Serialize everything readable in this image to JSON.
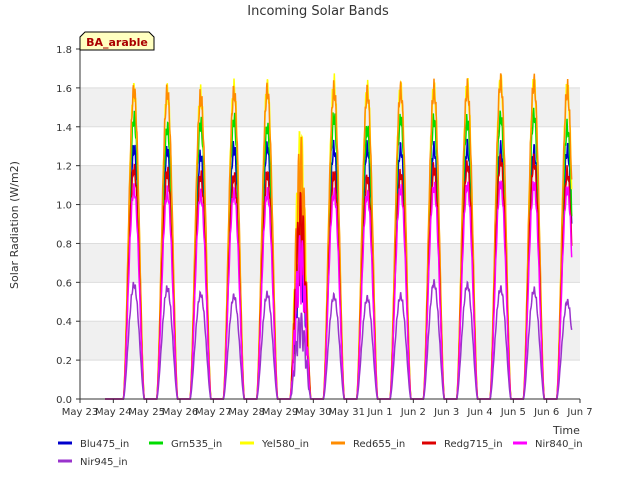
{
  "chart_data": {
    "type": "line",
    "title": "Incoming Solar Bands",
    "xlabel": "Time",
    "ylabel": "Solar Radiation (W/m2)",
    "badge": "BA_arable",
    "ylim": [
      0.0,
      1.8
    ],
    "yticks": [
      "0.0",
      "0.2",
      "0.4",
      "0.6",
      "0.8",
      "1.0",
      "1.2",
      "1.4",
      "1.6",
      "1.8"
    ],
    "xlim": [
      0,
      15
    ],
    "xticks": [
      "May 23",
      "May 24",
      "May 25",
      "May 26",
      "May 27",
      "May 28",
      "May 29",
      "May 30",
      "May 31",
      "Jun 1",
      "Jun 2",
      "Jun 3",
      "Jun 4",
      "Jun 5",
      "Jun 6",
      "Jun 7"
    ],
    "grid": "horizontal bands",
    "legend_position": "bottom",
    "day_start": 0.3,
    "day_end": 0.93,
    "noon": 0.62,
    "series": [
      {
        "name": "Blu475_in",
        "color": "#0000cc",
        "peaks": [
          1.34,
          1.33,
          1.3,
          1.34,
          1.35,
          0.95,
          1.34,
          1.34,
          1.34,
          1.34,
          1.34,
          1.34,
          1.33,
          1.33
        ]
      },
      {
        "name": "Grn535_in",
        "color": "#00dd00",
        "peaks": [
          1.5,
          1.45,
          1.47,
          1.49,
          1.45,
          1.12,
          1.5,
          1.44,
          1.5,
          1.49,
          1.48,
          1.51,
          1.52,
          1.45
        ]
      },
      {
        "name": "Yel580_in",
        "color": "#ffff00",
        "peaks": [
          1.65,
          1.64,
          1.62,
          1.66,
          1.67,
          1.42,
          1.68,
          1.66,
          1.66,
          1.65,
          1.67,
          1.7,
          1.69,
          1.65
        ]
      },
      {
        "name": "Red655_in",
        "color": "#ff8c00",
        "peaks": [
          1.65,
          1.64,
          1.61,
          1.64,
          1.65,
          1.36,
          1.65,
          1.64,
          1.65,
          1.65,
          1.66,
          1.7,
          1.69,
          1.65
        ]
      },
      {
        "name": "Redg715_in",
        "color": "#dd0000",
        "peaks": [
          1.23,
          1.21,
          1.19,
          1.19,
          1.2,
          1.07,
          1.2,
          1.18,
          1.2,
          1.23,
          1.25,
          1.28,
          1.27,
          1.21
        ]
      },
      {
        "name": "Nir840_in",
        "color": "#ff00ff",
        "peaks": [
          1.12,
          1.1,
          1.09,
          1.1,
          1.1,
          0.86,
          1.1,
          1.09,
          1.12,
          1.13,
          1.14,
          1.15,
          1.14,
          1.12
        ]
      },
      {
        "name": "Nir945_in",
        "color": "#9933cc",
        "peaks": [
          0.61,
          0.59,
          0.56,
          0.55,
          0.56,
          0.45,
          0.55,
          0.54,
          0.55,
          0.62,
          0.61,
          0.59,
          0.58,
          0.52
        ]
      }
    ]
  }
}
